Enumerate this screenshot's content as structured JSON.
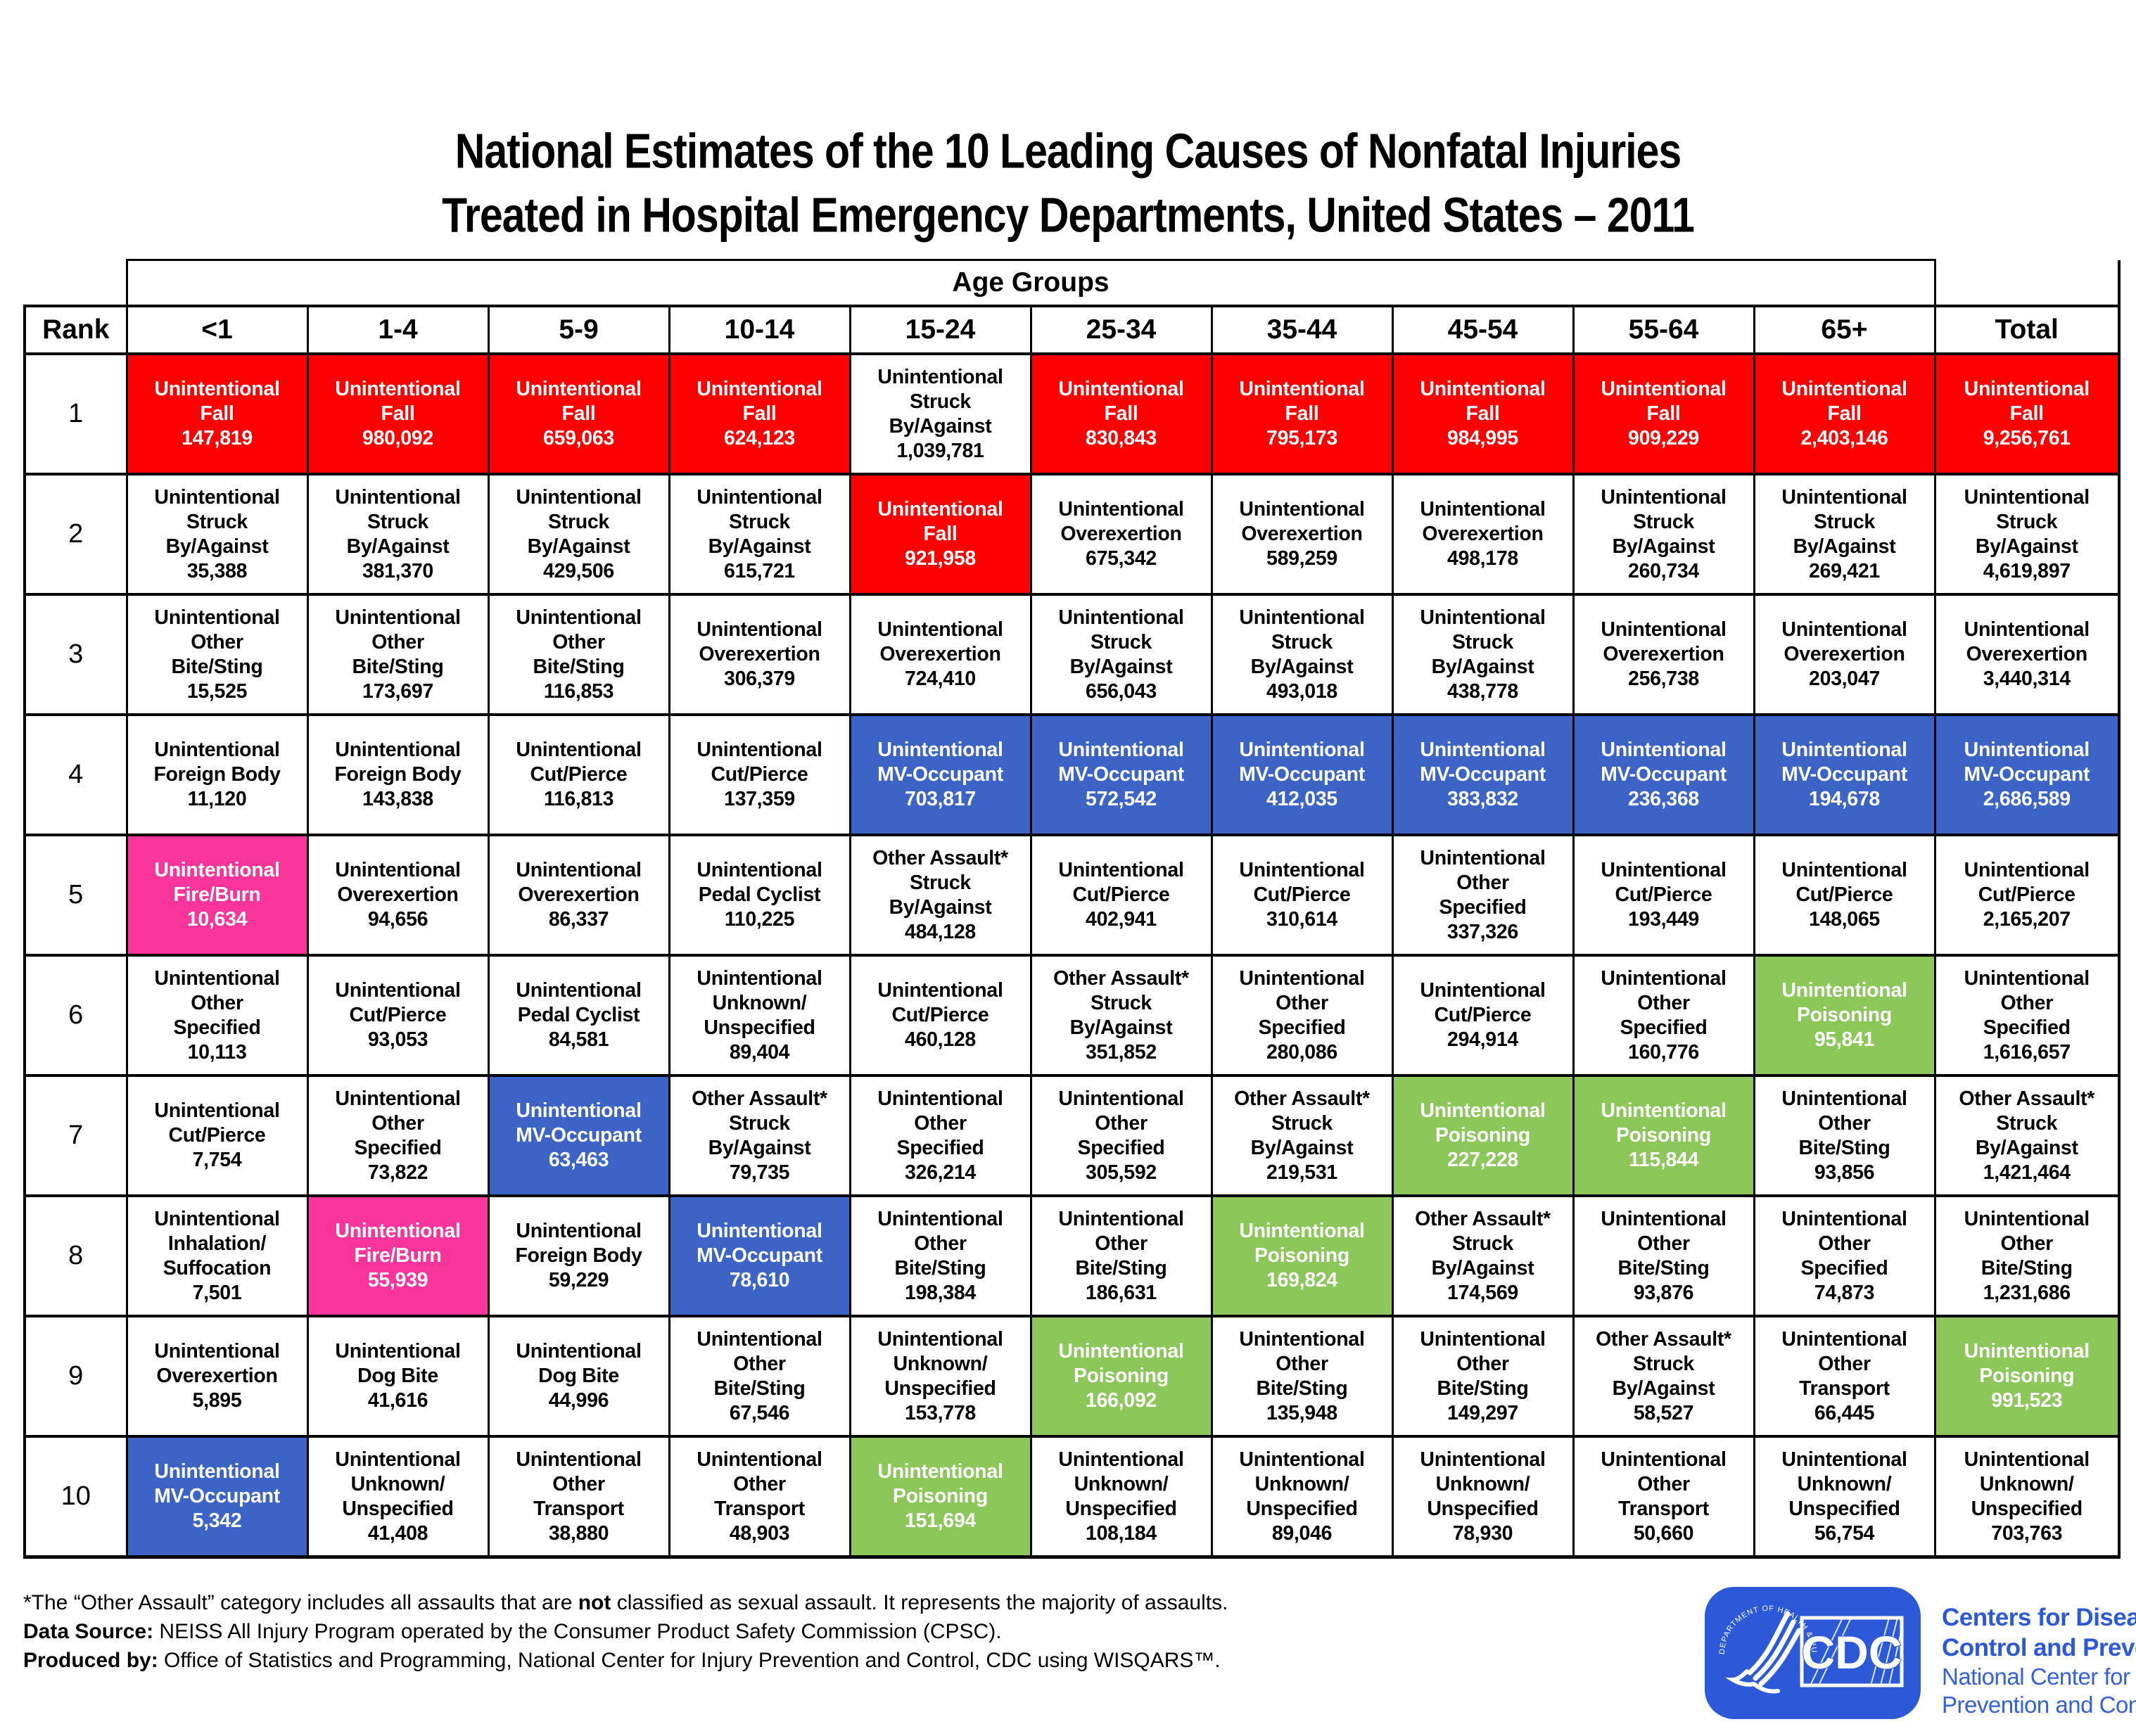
{
  "page": {
    "title_line1": "National Estimates of the 10 Leading Causes of Nonfatal Injuries",
    "title_line2": "Treated in Hospital Emergency Departments, United States – 2011"
  },
  "chart_data": {
    "type": "table",
    "title": "National Estimates of the 10 Leading Causes of Nonfatal Injuries Treated in Hospital Emergency Departments, United States – 2011",
    "group_header": "Age Groups",
    "rank_header": "Rank",
    "columns": [
      "<1",
      "1-4",
      "5-9",
      "10-14",
      "15-24",
      "25-34",
      "35-44",
      "45-54",
      "55-64",
      "65+",
      "Total"
    ],
    "colors": {
      "red": "#FE0000",
      "blue": "#3C64C6",
      "green": "#8CC859",
      "pink": "#F9349B",
      "white": "#FFFFFF"
    },
    "color_meaning": {
      "red": "Unintentional Fall",
      "blue": "Unintentional MV-Occupant",
      "green": "Unintentional Poisoning",
      "pink": "Unintentional Fire/Burn"
    },
    "rows": [
      {
        "rank": "1",
        "cells": [
          [
            "Unintentional\nFall",
            "147,819",
            "red"
          ],
          [
            "Unintentional\nFall",
            "980,092",
            "red"
          ],
          [
            "Unintentional\nFall",
            "659,063",
            "red"
          ],
          [
            "Unintentional\nFall",
            "624,123",
            "red"
          ],
          [
            "Unintentional\nStruck\nBy/Against",
            "1,039,781",
            "white"
          ],
          [
            "Unintentional\nFall",
            "830,843",
            "red"
          ],
          [
            "Unintentional\nFall",
            "795,173",
            "red"
          ],
          [
            "Unintentional\nFall",
            "984,995",
            "red"
          ],
          [
            "Unintentional\nFall",
            "909,229",
            "red"
          ],
          [
            "Unintentional\nFall",
            "2,403,146",
            "red"
          ],
          [
            "Unintentional\nFall",
            "9,256,761",
            "red"
          ]
        ]
      },
      {
        "rank": "2",
        "cells": [
          [
            "Unintentional\nStruck\nBy/Against",
            "35,388",
            "white"
          ],
          [
            "Unintentional\nStruck\nBy/Against",
            "381,370",
            "white"
          ],
          [
            "Unintentional\nStruck\nBy/Against",
            "429,506",
            "white"
          ],
          [
            "Unintentional\nStruck\nBy/Against",
            "615,721",
            "white"
          ],
          [
            "Unintentional\nFall",
            "921,958",
            "red"
          ],
          [
            "Unintentional\nOverexertion",
            "675,342",
            "white"
          ],
          [
            "Unintentional\nOverexertion",
            "589,259",
            "white"
          ],
          [
            "Unintentional\nOverexertion",
            "498,178",
            "white"
          ],
          [
            "Unintentional\nStruck\nBy/Against",
            "260,734",
            "white"
          ],
          [
            "Unintentional\nStruck\nBy/Against",
            "269,421",
            "white"
          ],
          [
            "Unintentional\nStruck\nBy/Against",
            "4,619,897",
            "white"
          ]
        ]
      },
      {
        "rank": "3",
        "cells": [
          [
            "Unintentional\nOther\nBite/Sting",
            "15,525",
            "white"
          ],
          [
            "Unintentional\nOther\nBite/Sting",
            "173,697",
            "white"
          ],
          [
            "Unintentional\nOther\nBite/Sting",
            "116,853",
            "white"
          ],
          [
            "Unintentional\nOverexertion",
            "306,379",
            "white"
          ],
          [
            "Unintentional\nOverexertion",
            "724,410",
            "white"
          ],
          [
            "Unintentional\nStruck\nBy/Against",
            "656,043",
            "white"
          ],
          [
            "Unintentional\nStruck\nBy/Against",
            "493,018",
            "white"
          ],
          [
            "Unintentional\nStruck\nBy/Against",
            "438,778",
            "white"
          ],
          [
            "Unintentional\nOverexertion",
            "256,738",
            "white"
          ],
          [
            "Unintentional\nOverexertion",
            "203,047",
            "white"
          ],
          [
            "Unintentional\nOverexertion",
            "3,440,314",
            "white"
          ]
        ]
      },
      {
        "rank": "4",
        "cells": [
          [
            "Unintentional\nForeign Body",
            "11,120",
            "white"
          ],
          [
            "Unintentional\nForeign Body",
            "143,838",
            "white"
          ],
          [
            "Unintentional\nCut/Pierce",
            "116,813",
            "white"
          ],
          [
            "Unintentional\nCut/Pierce",
            "137,359",
            "white"
          ],
          [
            "Unintentional\nMV-Occupant",
            "703,817",
            "blue"
          ],
          [
            "Unintentional\nMV-Occupant",
            "572,542",
            "blue"
          ],
          [
            "Unintentional\nMV-Occupant",
            "412,035",
            "blue"
          ],
          [
            "Unintentional\nMV-Occupant",
            "383,832",
            "blue"
          ],
          [
            "Unintentional\nMV-Occupant",
            "236,368",
            "blue"
          ],
          [
            "Unintentional\nMV-Occupant",
            "194,678",
            "blue"
          ],
          [
            "Unintentional\nMV-Occupant",
            "2,686,589",
            "blue"
          ]
        ]
      },
      {
        "rank": "5",
        "cells": [
          [
            "Unintentional\nFire/Burn",
            "10,634",
            "pink"
          ],
          [
            "Unintentional\nOverexertion",
            "94,656",
            "white"
          ],
          [
            "Unintentional\nOverexertion",
            "86,337",
            "white"
          ],
          [
            "Unintentional\nPedal Cyclist",
            "110,225",
            "white"
          ],
          [
            "Other Assault*\nStruck\nBy/Against",
            "484,128",
            "white"
          ],
          [
            "Unintentional\nCut/Pierce",
            "402,941",
            "white"
          ],
          [
            "Unintentional\nCut/Pierce",
            "310,614",
            "white"
          ],
          [
            "Unintentional\nOther\nSpecified",
            "337,326",
            "white"
          ],
          [
            "Unintentional\nCut/Pierce",
            "193,449",
            "white"
          ],
          [
            "Unintentional\nCut/Pierce",
            "148,065",
            "white"
          ],
          [
            "Unintentional\nCut/Pierce",
            "2,165,207",
            "white"
          ]
        ]
      },
      {
        "rank": "6",
        "cells": [
          [
            "Unintentional\nOther\nSpecified",
            "10,113",
            "white"
          ],
          [
            "Unintentional\nCut/Pierce",
            "93,053",
            "white"
          ],
          [
            "Unintentional\nPedal Cyclist",
            "84,581",
            "white"
          ],
          [
            "Unintentional\nUnknown/\nUnspecified",
            "89,404",
            "white"
          ],
          [
            "Unintentional\nCut/Pierce",
            "460,128",
            "white"
          ],
          [
            "Other Assault*\nStruck\nBy/Against",
            "351,852",
            "white"
          ],
          [
            "Unintentional\nOther\nSpecified",
            "280,086",
            "white"
          ],
          [
            "Unintentional\nCut/Pierce",
            "294,914",
            "white"
          ],
          [
            "Unintentional\nOther\nSpecified",
            "160,776",
            "white"
          ],
          [
            "Unintentional\nPoisoning",
            "95,841",
            "green"
          ],
          [
            "Unintentional\nOther\nSpecified",
            "1,616,657",
            "white"
          ]
        ]
      },
      {
        "rank": "7",
        "cells": [
          [
            "Unintentional\nCut/Pierce",
            "7,754",
            "white"
          ],
          [
            "Unintentional\nOther\nSpecified",
            "73,822",
            "white"
          ],
          [
            "Unintentional\nMV-Occupant",
            "63,463",
            "blue"
          ],
          [
            "Other Assault*\nStruck\nBy/Against",
            "79,735",
            "white"
          ],
          [
            "Unintentional\nOther\nSpecified",
            "326,214",
            "white"
          ],
          [
            "Unintentional\nOther\nSpecified",
            "305,592",
            "white"
          ],
          [
            "Other Assault*\nStruck\nBy/Against",
            "219,531",
            "white"
          ],
          [
            "Unintentional\nPoisoning",
            "227,228",
            "green"
          ],
          [
            "Unintentional\nPoisoning",
            "115,844",
            "green"
          ],
          [
            "Unintentional\nOther\nBite/Sting",
            "93,856",
            "white"
          ],
          [
            "Other Assault*\nStruck\nBy/Against",
            "1,421,464",
            "white"
          ]
        ]
      },
      {
        "rank": "8",
        "cells": [
          [
            "Unintentional\nInhalation/\nSuffocation",
            "7,501",
            "white"
          ],
          [
            "Unintentional\nFire/Burn",
            "55,939",
            "pink"
          ],
          [
            "Unintentional\nForeign Body",
            "59,229",
            "white"
          ],
          [
            "Unintentional\nMV-Occupant",
            "78,610",
            "blue"
          ],
          [
            "Unintentional\nOther\nBite/Sting",
            "198,384",
            "white"
          ],
          [
            "Unintentional\nOther\nBite/Sting",
            "186,631",
            "white"
          ],
          [
            "Unintentional\nPoisoning",
            "169,824",
            "green"
          ],
          [
            "Other Assault*\nStruck\nBy/Against",
            "174,569",
            "white"
          ],
          [
            "Unintentional\nOther\nBite/Sting",
            "93,876",
            "white"
          ],
          [
            "Unintentional\nOther\nSpecified",
            "74,873",
            "white"
          ],
          [
            "Unintentional\nOther\nBite/Sting",
            "1,231,686",
            "white"
          ]
        ]
      },
      {
        "rank": "9",
        "cells": [
          [
            "Unintentional\nOverexertion",
            "5,895",
            "white"
          ],
          [
            "Unintentional\nDog Bite",
            "41,616",
            "white"
          ],
          [
            "Unintentional\nDog Bite",
            "44,996",
            "white"
          ],
          [
            "Unintentional\nOther\nBite/Sting",
            "67,546",
            "white"
          ],
          [
            "Unintentional\nUnknown/\nUnspecified",
            "153,778",
            "white"
          ],
          [
            "Unintentional\nPoisoning",
            "166,092",
            "green"
          ],
          [
            "Unintentional\nOther\nBite/Sting",
            "135,948",
            "white"
          ],
          [
            "Unintentional\nOther\nBite/Sting",
            "149,297",
            "white"
          ],
          [
            "Other Assault*\nStruck\nBy/Against",
            "58,527",
            "white"
          ],
          [
            "Unintentional\nOther\nTransport",
            "66,445",
            "white"
          ],
          [
            "Unintentional\nPoisoning",
            "991,523",
            "green"
          ]
        ]
      },
      {
        "rank": "10",
        "cells": [
          [
            "Unintentional\nMV-Occupant",
            "5,342",
            "blue"
          ],
          [
            "Unintentional\nUnknown/\nUnspecified",
            "41,408",
            "white"
          ],
          [
            "Unintentional\nOther\nTransport",
            "38,880",
            "white"
          ],
          [
            "Unintentional\nOther\nTransport",
            "48,903",
            "white"
          ],
          [
            "Unintentional\nPoisoning",
            "151,694",
            "green"
          ],
          [
            "Unintentional\nUnknown/\nUnspecified",
            "108,184",
            "white"
          ],
          [
            "Unintentional\nUnknown/\nUnspecified",
            "89,046",
            "white"
          ],
          [
            "Unintentional\nUnknown/\nUnspecified",
            "78,930",
            "white"
          ],
          [
            "Unintentional\nOther\nTransport",
            "50,660",
            "white"
          ],
          [
            "Unintentional\nUnknown/\nUnspecified",
            "56,754",
            "white"
          ],
          [
            "Unintentional\nUnknown/\nUnspecified",
            "703,763",
            "white"
          ]
        ]
      }
    ]
  },
  "footnotes": {
    "fn1_pre": "*The “Other Assault” category includes all assaults that are ",
    "fn1_bold": "not",
    "fn1_post": " classified as sexual assault. It represents the majority of assaults.",
    "fn2_label": "Data Source:",
    "fn2_text": " NEISS All Injury Program operated by the Consumer Product Safety Commission (CPSC).",
    "fn3_label": "Produced by:",
    "fn3_text": " Office of Statistics and Programming, National Center for Injury Prevention and Control, CDC using WISQARS™."
  },
  "logo": {
    "acronym": "CDC",
    "seal_text": "DEPARTMENT OF HEALTH & HUMAN SERVICES·USA",
    "brand_bold_line1": "Centers for Disease",
    "brand_bold_line2": "Control and Prevention",
    "brand_line3": "National Center for Injury",
    "brand_line4": "Prevention and Control",
    "logo_blue": "#2B59D8"
  }
}
